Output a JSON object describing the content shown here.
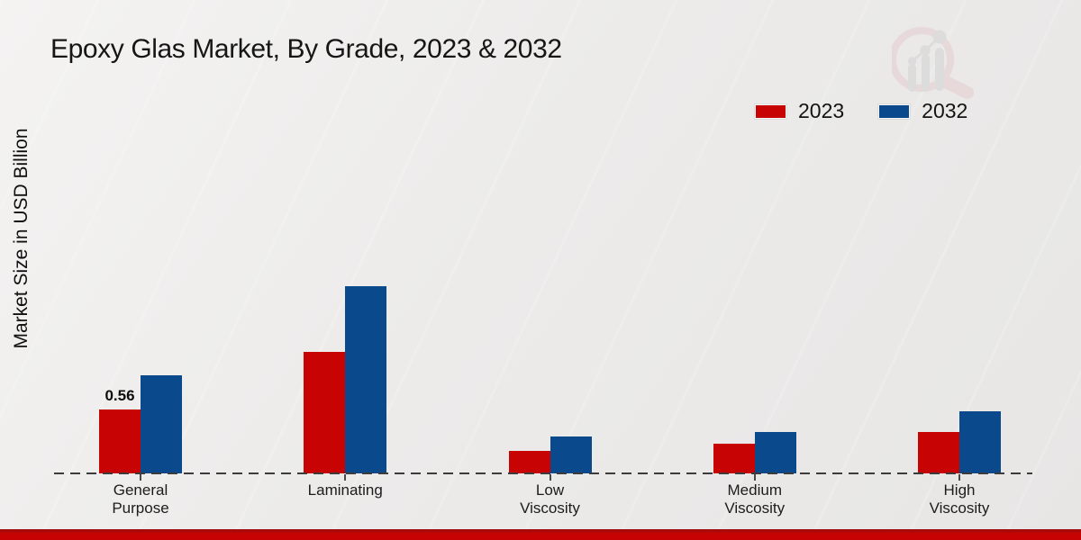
{
  "title": "Epoxy Glas Market, By Grade, 2023 & 2032",
  "y_axis_label": "Market Size in USD Billion",
  "legend": {
    "items": [
      {
        "label": "2023",
        "color": "#c80304"
      },
      {
        "label": "2032",
        "color": "#0a4a8c"
      }
    ]
  },
  "watermark_icon": "magnifier-bar-chart-logo",
  "colors": {
    "series_2023": "#c80304",
    "series_2032": "#0a4a8c",
    "footer_bar": "#c60202",
    "background": "#ecebea",
    "baseline": "#3c3c3c"
  },
  "chart_data": {
    "type": "bar",
    "title": "Epoxy Glas Market, By Grade, 2023 & 2032",
    "xlabel": "",
    "ylabel": "Market Size in USD Billion",
    "categories": [
      "General Purpose",
      "Laminating",
      "Low Viscosity",
      "Medium Viscosity",
      "High Viscosity"
    ],
    "category_label_lines": [
      [
        "General",
        "Purpose"
      ],
      [
        "Laminating"
      ],
      [
        "Low",
        "Viscosity"
      ],
      [
        "Medium",
        "Viscosity"
      ],
      [
        "High",
        "Viscosity"
      ]
    ],
    "series": [
      {
        "name": "2023",
        "color": "#c80304",
        "values": [
          0.56,
          1.06,
          0.2,
          0.26,
          0.36
        ]
      },
      {
        "name": "2032",
        "color": "#0a4a8c",
        "values": [
          0.86,
          1.64,
          0.32,
          0.36,
          0.54
        ]
      }
    ],
    "data_labels": [
      {
        "series_index": 0,
        "category_index": 0,
        "text": "0.56"
      }
    ],
    "ylim": [
      0,
      1.8
    ],
    "grid": false,
    "legend_position": "top-right",
    "baseline_style": "dashed",
    "y_axis_visible": false
  }
}
